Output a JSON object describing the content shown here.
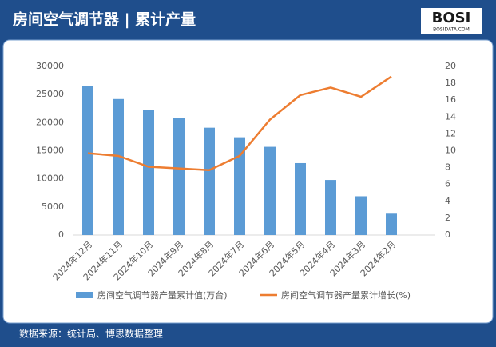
{
  "header": {
    "title": "房间空气调节器 | 累计产量",
    "logo": "BOSI",
    "logo_sub": "BOSIDATA.COM"
  },
  "footer": {
    "source": "数据来源：统计局、博思数据整理"
  },
  "chart_data": {
    "type": "bar_line",
    "categories": [
      "2024年12月",
      "2024年11月",
      "2024年10月",
      "2024年9月",
      "2024年8月",
      "2024年7月",
      "2024年6月",
      "2024年5月",
      "2024年4月",
      "2024年3月",
      "2024年2月"
    ],
    "series": [
      {
        "name": "房间空气调节器产量累计值(万台)",
        "color": "#5b9bd5",
        "type": "bar",
        "values": [
          26500,
          24200,
          22300,
          20900,
          19100,
          17400,
          15700,
          12800,
          9800,
          6900,
          3800
        ]
      },
      {
        "name": "房间空气调节器产量累计增长(%)",
        "color": "#ed7d31",
        "type": "line",
        "axis": "y2",
        "values": [
          9.7,
          9.4,
          8.1,
          7.9,
          7.7,
          9.4,
          13.7,
          16.6,
          17.5,
          16.4,
          18.8
        ]
      }
    ],
    "ylim": [
      0,
      30000
    ],
    "yticks": [
      0,
      5000,
      10000,
      15000,
      20000,
      25000,
      30000
    ],
    "y2lim": [
      0,
      20
    ],
    "y2ticks": [
      0,
      2,
      4,
      6,
      8,
      10,
      12,
      14,
      16,
      18,
      20
    ],
    "legend": "bottom"
  }
}
